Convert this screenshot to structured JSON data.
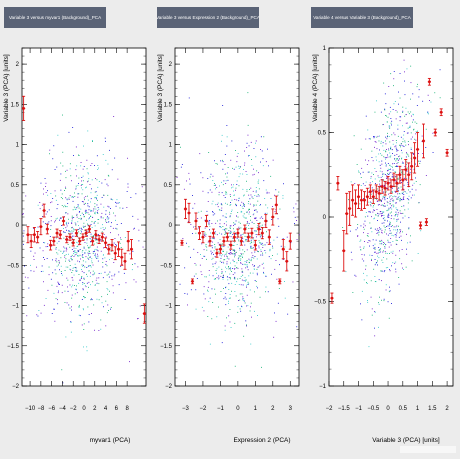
{
  "chart_data": [
    {
      "type": "scatter",
      "title": "Variable 3 versus myvar1 (Background)_PCA",
      "xlabel": "myvar1 (PCA)",
      "ylabel": "Variable 3 (PCA)  [units]",
      "xlim": [
        -11.5,
        11.5
      ],
      "ylim": [
        -2,
        2.2
      ],
      "xticks": [
        -10,
        -8,
        -6,
        -4,
        -2,
        0,
        2,
        4,
        6,
        8
      ],
      "xtick_labels": [
        "−10",
        "−8",
        "−6",
        "−4",
        "−2",
        "0",
        "2",
        "4",
        "6",
        "8"
      ],
      "yticks": [
        -2,
        -1.5,
        -1,
        -0.5,
        0,
        0.5,
        1,
        1.5,
        2
      ],
      "ytick_labels": [
        "−2",
        "−1.5",
        "−1",
        "−0.5",
        "0",
        "0.5",
        "1",
        "1.5",
        "2"
      ],
      "grid": false,
      "scatter_colors": [
        "#1010d8",
        "#6a10c8",
        "#10b070",
        "#30c8c8"
      ],
      "profile_color": "#dd1111",
      "profile": [
        {
          "x": -11.2,
          "y": 1.45,
          "err": 0.15
        },
        {
          "x": -10.4,
          "y": -0.12,
          "err": 0.1
        },
        {
          "x": -9.8,
          "y": -0.2,
          "err": 0.08
        },
        {
          "x": -9.2,
          "y": -0.12,
          "err": 0.09
        },
        {
          "x": -8.6,
          "y": -0.15,
          "err": 0.07
        },
        {
          "x": -8.0,
          "y": -0.02,
          "err": 0.1
        },
        {
          "x": -7.4,
          "y": 0.18,
          "err": 0.08
        },
        {
          "x": -6.8,
          "y": -0.05,
          "err": 0.06
        },
        {
          "x": -6.2,
          "y": -0.25,
          "err": 0.06
        },
        {
          "x": -5.6,
          "y": -0.2,
          "err": 0.05
        },
        {
          "x": -5.0,
          "y": -0.1,
          "err": 0.05
        },
        {
          "x": -4.4,
          "y": -0.12,
          "err": 0.05
        },
        {
          "x": -3.8,
          "y": 0.05,
          "err": 0.05
        },
        {
          "x": -3.2,
          "y": -0.18,
          "err": 0.04
        },
        {
          "x": -2.6,
          "y": -0.15,
          "err": 0.04
        },
        {
          "x": -2.0,
          "y": -0.22,
          "err": 0.04
        },
        {
          "x": -1.4,
          "y": -0.1,
          "err": 0.04
        },
        {
          "x": -0.8,
          "y": -0.2,
          "err": 0.04
        },
        {
          "x": -0.2,
          "y": -0.15,
          "err": 0.04
        },
        {
          "x": 0.4,
          "y": -0.1,
          "err": 0.04
        },
        {
          "x": 1.0,
          "y": -0.05,
          "err": 0.04
        },
        {
          "x": 1.6,
          "y": -0.2,
          "err": 0.05
        },
        {
          "x": 2.2,
          "y": -0.12,
          "err": 0.05
        },
        {
          "x": 2.8,
          "y": -0.18,
          "err": 0.05
        },
        {
          "x": 3.4,
          "y": -0.15,
          "err": 0.05
        },
        {
          "x": 4.0,
          "y": -0.22,
          "err": 0.06
        },
        {
          "x": 4.6,
          "y": -0.3,
          "err": 0.06
        },
        {
          "x": 5.2,
          "y": -0.25,
          "err": 0.07
        },
        {
          "x": 5.8,
          "y": -0.35,
          "err": 0.08
        },
        {
          "x": 6.4,
          "y": -0.3,
          "err": 0.09
        },
        {
          "x": 7.0,
          "y": -0.4,
          "err": 0.1
        },
        {
          "x": 7.6,
          "y": -0.45,
          "err": 0.1
        },
        {
          "x": 8.2,
          "y": -0.2,
          "err": 0.12
        },
        {
          "x": 8.8,
          "y": -0.3,
          "err": 0.12
        },
        {
          "x": 11.2,
          "y": -1.1,
          "err": 0.12
        }
      ]
    },
    {
      "type": "scatter",
      "title": "Variable 3 versus Expression 2 (Background)_PCA",
      "xlabel": "Expression 2 (PCA)",
      "ylabel": "Variable 3 (PCA)  [units]",
      "xlim": [
        -3.6,
        3.5
      ],
      "ylim": [
        -2,
        2.2
      ],
      "xticks": [
        -3,
        -2,
        -1,
        0,
        1,
        2,
        3
      ],
      "xtick_labels": [
        "−3",
        "−2",
        "−1",
        "0",
        "1",
        "2",
        "3"
      ],
      "yticks": [
        -2,
        -1.5,
        -1,
        -0.5,
        0,
        0.5,
        1,
        1.5,
        2
      ],
      "ytick_labels": [
        "−2",
        "−1.5",
        "−1",
        "−0.5",
        "0",
        "0.5",
        "1",
        "1.5",
        "2"
      ],
      "grid": false,
      "scatter_colors": [
        "#1010d8",
        "#6a10c8",
        "#10b070",
        "#30c8c8"
      ],
      "profile_color": "#dd1111",
      "profile": [
        {
          "x": -3.2,
          "y": -0.22,
          "err": 0.03
        },
        {
          "x": -3.0,
          "y": 0.2,
          "err": 0.12
        },
        {
          "x": -2.8,
          "y": 0.15,
          "err": 0.12
        },
        {
          "x": -2.6,
          "y": -0.7,
          "err": 0.03
        },
        {
          "x": -2.4,
          "y": 0.05,
          "err": 0.1
        },
        {
          "x": -2.2,
          "y": -0.1,
          "err": 0.08
        },
        {
          "x": -2.0,
          "y": -0.15,
          "err": 0.07
        },
        {
          "x": -1.8,
          "y": 0.05,
          "err": 0.07
        },
        {
          "x": -1.6,
          "y": -0.2,
          "err": 0.06
        },
        {
          "x": -1.4,
          "y": -0.1,
          "err": 0.05
        },
        {
          "x": -1.2,
          "y": -0.35,
          "err": 0.05
        },
        {
          "x": -1.0,
          "y": -0.3,
          "err": 0.05
        },
        {
          "x": -0.8,
          "y": -0.2,
          "err": 0.05
        },
        {
          "x": -0.6,
          "y": -0.15,
          "err": 0.05
        },
        {
          "x": -0.4,
          "y": -0.25,
          "err": 0.05
        },
        {
          "x": -0.2,
          "y": -0.15,
          "err": 0.05
        },
        {
          "x": 0.0,
          "y": -0.1,
          "err": 0.05
        },
        {
          "x": 0.2,
          "y": -0.2,
          "err": 0.05
        },
        {
          "x": 0.4,
          "y": -0.05,
          "err": 0.05
        },
        {
          "x": 0.6,
          "y": -0.15,
          "err": 0.05
        },
        {
          "x": 0.8,
          "y": -0.1,
          "err": 0.06
        },
        {
          "x": 1.0,
          "y": -0.25,
          "err": 0.06
        },
        {
          "x": 1.2,
          "y": -0.05,
          "err": 0.07
        },
        {
          "x": 1.4,
          "y": -0.1,
          "err": 0.07
        },
        {
          "x": 1.6,
          "y": 0.05,
          "err": 0.08
        },
        {
          "x": 1.8,
          "y": -0.15,
          "err": 0.09
        },
        {
          "x": 2.0,
          "y": 0.1,
          "err": 0.1
        },
        {
          "x": 2.2,
          "y": 0.25,
          "err": 0.11
        },
        {
          "x": 2.4,
          "y": -0.7,
          "err": 0.03
        },
        {
          "x": 2.6,
          "y": -0.3,
          "err": 0.12
        },
        {
          "x": 2.8,
          "y": -0.45,
          "err": 0.12
        },
        {
          "x": 3.0,
          "y": -0.2,
          "err": 0.1
        }
      ]
    },
    {
      "type": "scatter",
      "title": "Variable 4 versus Variable 3 (Background)_PCA",
      "xlabel": "Variable 3 (PCA)  [units]",
      "ylabel": "Variable 4 (PCA)  [units]",
      "xlim": [
        -2,
        2.2
      ],
      "ylim": [
        -1,
        1
      ],
      "xticks": [
        -2,
        -1.5,
        -1,
        -0.5,
        0,
        0.5,
        1,
        1.5,
        2
      ],
      "xtick_labels": [
        "−2",
        "−1.5",
        "−1",
        "−0.5",
        "0",
        "0.5",
        "1",
        "1.5",
        "2"
      ],
      "yticks": [
        -1,
        -0.5,
        0,
        0.5,
        1
      ],
      "ytick_labels": [
        "−1",
        "−0.5",
        "0",
        "0.5",
        "1"
      ],
      "grid": false,
      "scatter_colors": [
        "#1010d8",
        "#6a10c8",
        "#10b070",
        "#30c8c8"
      ],
      "profile_color": "#dd1111",
      "profile": [
        {
          "x": -1.9,
          "y": -0.48,
          "err": 0.03
        },
        {
          "x": -1.7,
          "y": 0.2,
          "err": 0.04
        },
        {
          "x": -1.5,
          "y": -0.2,
          "err": 0.12
        },
        {
          "x": -1.4,
          "y": 0.02,
          "err": 0.12
        },
        {
          "x": -1.3,
          "y": 0.05,
          "err": 0.1
        },
        {
          "x": -1.2,
          "y": 0.1,
          "err": 0.09
        },
        {
          "x": -1.1,
          "y": 0.08,
          "err": 0.08
        },
        {
          "x": -1.0,
          "y": 0.12,
          "err": 0.07
        },
        {
          "x": -0.9,
          "y": 0.1,
          "err": 0.06
        },
        {
          "x": -0.8,
          "y": 0.1,
          "err": 0.05
        },
        {
          "x": -0.7,
          "y": 0.12,
          "err": 0.05
        },
        {
          "x": -0.6,
          "y": 0.15,
          "err": 0.04
        },
        {
          "x": -0.5,
          "y": 0.12,
          "err": 0.04
        },
        {
          "x": -0.4,
          "y": 0.15,
          "err": 0.04
        },
        {
          "x": -0.3,
          "y": 0.14,
          "err": 0.04
        },
        {
          "x": -0.2,
          "y": 0.18,
          "err": 0.04
        },
        {
          "x": -0.1,
          "y": 0.17,
          "err": 0.04
        },
        {
          "x": 0.0,
          "y": 0.2,
          "err": 0.04
        },
        {
          "x": 0.1,
          "y": 0.18,
          "err": 0.04
        },
        {
          "x": 0.2,
          "y": 0.22,
          "err": 0.04
        },
        {
          "x": 0.3,
          "y": 0.2,
          "err": 0.05
        },
        {
          "x": 0.4,
          "y": 0.25,
          "err": 0.05
        },
        {
          "x": 0.5,
          "y": 0.22,
          "err": 0.06
        },
        {
          "x": 0.6,
          "y": 0.28,
          "err": 0.06
        },
        {
          "x": 0.7,
          "y": 0.25,
          "err": 0.07
        },
        {
          "x": 0.8,
          "y": 0.3,
          "err": 0.08
        },
        {
          "x": 0.9,
          "y": 0.35,
          "err": 0.09
        },
        {
          "x": 1.0,
          "y": 0.4,
          "err": 0.1
        },
        {
          "x": 1.1,
          "y": -0.05,
          "err": 0.02
        },
        {
          "x": 1.2,
          "y": 0.45,
          "err": 0.1
        },
        {
          "x": 1.3,
          "y": -0.03,
          "err": 0.02
        },
        {
          "x": 1.4,
          "y": 0.8,
          "err": 0.02
        },
        {
          "x": 1.6,
          "y": 0.5,
          "err": 0.02
        },
        {
          "x": 1.8,
          "y": 0.62,
          "err": 0.02
        },
        {
          "x": 2.0,
          "y": 0.38,
          "err": 0.02
        }
      ]
    }
  ]
}
